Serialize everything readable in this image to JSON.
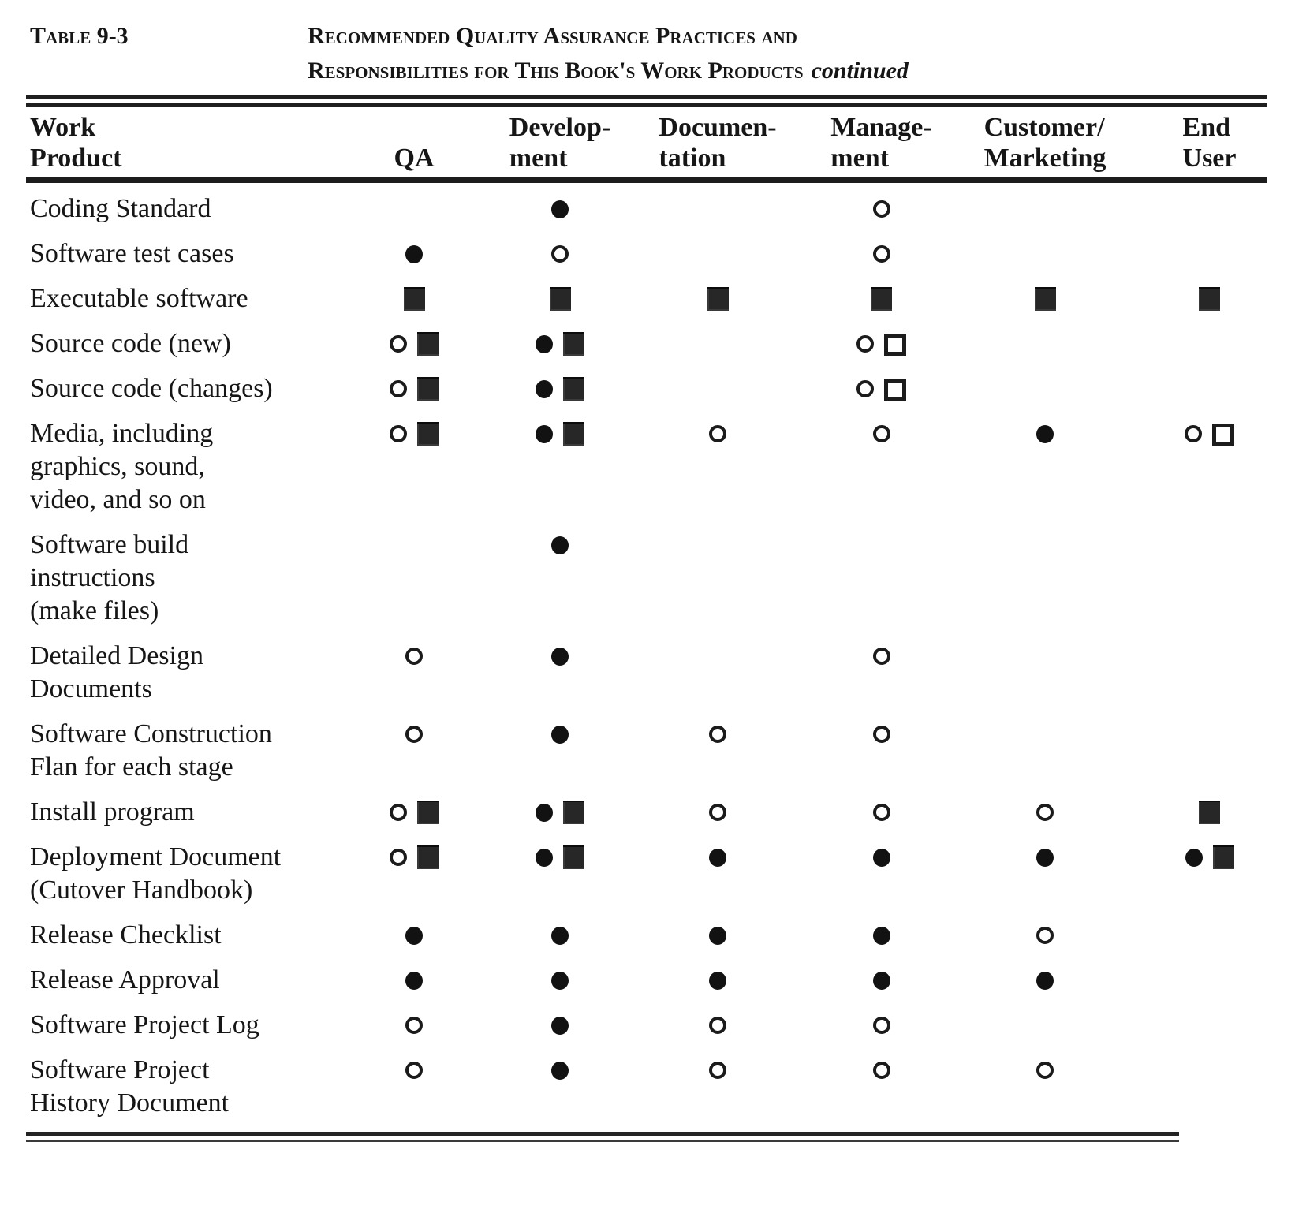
{
  "page": {
    "caption_label": "Table 9-3",
    "title_line1": "Recommended Quality Assurance Practices and",
    "title_line2": "Responsibilities for This Book's Work Products",
    "title_suffix": "continued"
  },
  "symbols": {
    "fc": "filled-circle",
    "oc": "open-circle",
    "fs": "filled-square",
    "os": "open-square"
  },
  "table": {
    "cell_order": [
      "qa",
      "development",
      "documentation",
      "management",
      "customer-marketing",
      "end-user"
    ],
    "columns": [
      {
        "id": "work-product",
        "lines": [
          "Work",
          "Product"
        ]
      },
      {
        "id": "qa",
        "lines": [
          "QA"
        ]
      },
      {
        "id": "development",
        "lines": [
          "Develop-",
          "ment"
        ]
      },
      {
        "id": "documentation",
        "lines": [
          "Documen-",
          "tation"
        ]
      },
      {
        "id": "management",
        "lines": [
          "Manage-",
          "ment"
        ]
      },
      {
        "id": "customer-marketing",
        "lines": [
          "Customer/",
          "Marketing"
        ]
      },
      {
        "id": "end-user",
        "lines": [
          "End",
          "User"
        ]
      }
    ],
    "rows": [
      {
        "id": "coding-standard",
        "label_lines": [
          "Coding Standard"
        ],
        "cells": [
          [],
          [
            "fc"
          ],
          [],
          [
            "oc"
          ],
          [],
          []
        ]
      },
      {
        "id": "software-test-cases",
        "label_lines": [
          "Software test cases"
        ],
        "cells": [
          [
            "fc"
          ],
          [
            "oc"
          ],
          [],
          [
            "oc"
          ],
          [],
          []
        ]
      },
      {
        "id": "executable-software",
        "label_lines": [
          "Executable software"
        ],
        "cells": [
          [
            "fs"
          ],
          [
            "fs"
          ],
          [
            "fs"
          ],
          [
            "fs"
          ],
          [
            "fs"
          ],
          [
            "fs"
          ]
        ]
      },
      {
        "id": "source-code-new",
        "label_lines": [
          "Source code (new)"
        ],
        "cells": [
          [
            "oc",
            "fs"
          ],
          [
            "fc",
            "fs"
          ],
          [],
          [
            "oc",
            "os"
          ],
          [],
          []
        ]
      },
      {
        "id": "source-code-changes",
        "label_lines": [
          "Source code (changes)"
        ],
        "cells": [
          [
            "oc",
            "fs"
          ],
          [
            "fc",
            "fs"
          ],
          [],
          [
            "oc",
            "os"
          ],
          [],
          []
        ]
      },
      {
        "id": "media",
        "label_lines": [
          "Media, including",
          "graphics, sound,",
          "video, and so on"
        ],
        "cells": [
          [
            "oc",
            "fs"
          ],
          [
            "fc",
            "fs"
          ],
          [
            "oc"
          ],
          [
            "oc"
          ],
          [
            "fc"
          ],
          [
            "oc",
            "os"
          ]
        ]
      },
      {
        "id": "software-build-instructions",
        "label_lines": [
          "Software build",
          "instructions",
          "(make files)"
        ],
        "cells": [
          [],
          [
            "fc"
          ],
          [],
          [],
          [],
          []
        ]
      },
      {
        "id": "detailed-design-documents",
        "label_lines": [
          "Detailed Design",
          "Documents"
        ],
        "cells": [
          [
            "oc"
          ],
          [
            "fc"
          ],
          [],
          [
            "oc"
          ],
          [],
          []
        ]
      },
      {
        "id": "software-construction-plan",
        "label_lines": [
          "Software Construction",
          "Flan for each stage"
        ],
        "cells": [
          [
            "oc"
          ],
          [
            "fc"
          ],
          [
            "oc"
          ],
          [
            "oc"
          ],
          [],
          []
        ]
      },
      {
        "id": "install-program",
        "label_lines": [
          "Install program"
        ],
        "cells": [
          [
            "oc",
            "fs"
          ],
          [
            "fc",
            "fs"
          ],
          [
            "oc"
          ],
          [
            "oc"
          ],
          [
            "oc"
          ],
          [
            "fs"
          ]
        ]
      },
      {
        "id": "deployment-document",
        "label_lines": [
          "Deployment Document",
          "(Cutover Handbook)"
        ],
        "cells": [
          [
            "oc",
            "fs"
          ],
          [
            "fc",
            "fs"
          ],
          [
            "fc"
          ],
          [
            "fc"
          ],
          [
            "fc"
          ],
          [
            "fc",
            "fs"
          ]
        ]
      },
      {
        "id": "release-checklist",
        "label_lines": [
          "Release Checklist"
        ],
        "cells": [
          [
            "fc"
          ],
          [
            "fc"
          ],
          [
            "fc"
          ],
          [
            "fc"
          ],
          [
            "oc"
          ],
          []
        ]
      },
      {
        "id": "release-approval",
        "label_lines": [
          "Release Approval"
        ],
        "cells": [
          [
            "fc"
          ],
          [
            "fc"
          ],
          [
            "fc"
          ],
          [
            "fc"
          ],
          [
            "fc"
          ],
          []
        ]
      },
      {
        "id": "software-project-log",
        "label_lines": [
          "Software Project Log"
        ],
        "cells": [
          [
            "oc"
          ],
          [
            "fc"
          ],
          [
            "oc"
          ],
          [
            "oc"
          ],
          [],
          []
        ]
      },
      {
        "id": "software-project-history-document",
        "label_lines": [
          "Software Project",
          "History Document"
        ],
        "cells": [
          [
            "oc"
          ],
          [
            "fc"
          ],
          [
            "oc"
          ],
          [
            "oc"
          ],
          [
            "oc"
          ],
          []
        ]
      }
    ]
  }
}
